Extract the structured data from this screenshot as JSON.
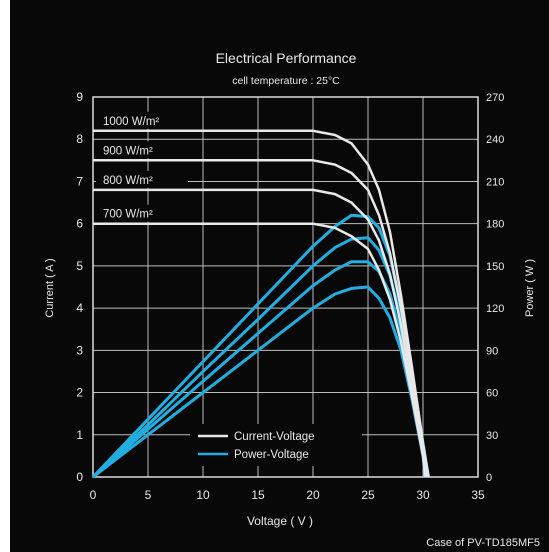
{
  "chart_data": {
    "type": "line",
    "title": "Electrical Performance",
    "subtitle": "cell temperature : 25°C",
    "xlabel": "Voltage ( V )",
    "ylabel_left": "Current ( A )",
    "ylabel_right": "Power ( W )",
    "xlim": [
      0,
      35
    ],
    "ylim_left": [
      0,
      9
    ],
    "ylim_right": [
      0,
      270
    ],
    "x_ticks": [
      "0",
      "5",
      "10",
      "15",
      "20",
      "25",
      "30",
      "35"
    ],
    "y_left_ticks": [
      "0",
      "1",
      "2",
      "3",
      "4",
      "5",
      "6",
      "7",
      "8",
      "9"
    ],
    "y_right_ticks": [
      "0",
      "30",
      "60",
      "90",
      "120",
      "150",
      "180",
      "210",
      "240",
      "270"
    ],
    "grid": true,
    "legend_position": "bottom-center",
    "legend": [
      {
        "label": "Current-Voltage",
        "color": "#e8e8e8"
      },
      {
        "label": "Power-Voltage",
        "color": "#21aee0"
      }
    ],
    "note": "Case of PV-TD185MF5",
    "series": [
      {
        "name": "1000 W/m²",
        "iv": {
          "x": [
            0,
            15,
            20,
            22,
            23.5,
            25,
            26,
            27,
            28,
            29,
            30,
            30.5
          ],
          "y": [
            8.2,
            8.2,
            8.2,
            8.1,
            7.9,
            7.4,
            6.8,
            5.8,
            4.3,
            2.6,
            0.8,
            0
          ]
        },
        "pv": {
          "x": [
            0,
            5,
            10,
            15,
            20,
            22,
            23.5,
            25,
            26,
            27,
            28,
            29,
            30,
            30.5
          ],
          "y": [
            0,
            41,
            82,
            123,
            164,
            178,
            186,
            185,
            177,
            157,
            120,
            75,
            24,
            0
          ]
        }
      },
      {
        "name": "900 W/m²",
        "iv": {
          "x": [
            0,
            15,
            20,
            22,
            23.5,
            25,
            26,
            27,
            28,
            29,
            30,
            30.5
          ],
          "y": [
            7.5,
            7.5,
            7.5,
            7.4,
            7.2,
            6.8,
            6.2,
            5.3,
            4.0,
            2.4,
            0.7,
            0
          ]
        },
        "pv": {
          "x": [
            0,
            5,
            10,
            15,
            20,
            22,
            23.5,
            25,
            26,
            27,
            28,
            29,
            30,
            30.5
          ],
          "y": [
            0,
            37,
            75,
            112,
            150,
            163,
            169,
            170,
            161,
            143,
            112,
            70,
            21,
            0
          ]
        }
      },
      {
        "name": "800 W/m²",
        "iv": {
          "x": [
            0,
            15,
            20,
            22,
            23.5,
            25,
            26,
            27,
            28,
            29,
            30,
            30.3
          ],
          "y": [
            6.8,
            6.8,
            6.8,
            6.7,
            6.5,
            6.1,
            5.6,
            4.8,
            3.6,
            2.1,
            0.6,
            0
          ]
        },
        "pv": {
          "x": [
            0,
            5,
            10,
            15,
            20,
            22,
            23.5,
            25,
            26,
            27,
            28,
            29,
            30,
            30.3
          ],
          "y": [
            0,
            34,
            68,
            102,
            136,
            147,
            153,
            153,
            146,
            130,
            101,
            61,
            18,
            0
          ]
        }
      },
      {
        "name": "700 W/m²",
        "iv": {
          "x": [
            0,
            15,
            20,
            22,
            23.5,
            25,
            26,
            27,
            28,
            29,
            30,
            30.2
          ],
          "y": [
            6.0,
            6.0,
            6.0,
            5.9,
            5.7,
            5.4,
            4.9,
            4.2,
            3.2,
            1.9,
            0.5,
            0
          ]
        },
        "pv": {
          "x": [
            0,
            5,
            10,
            15,
            20,
            22,
            23.5,
            25,
            26,
            27,
            28,
            29,
            30,
            30.2
          ],
          "y": [
            0,
            30,
            60,
            90,
            120,
            130,
            134,
            135,
            127,
            113,
            90,
            55,
            15,
            0
          ]
        }
      }
    ]
  }
}
